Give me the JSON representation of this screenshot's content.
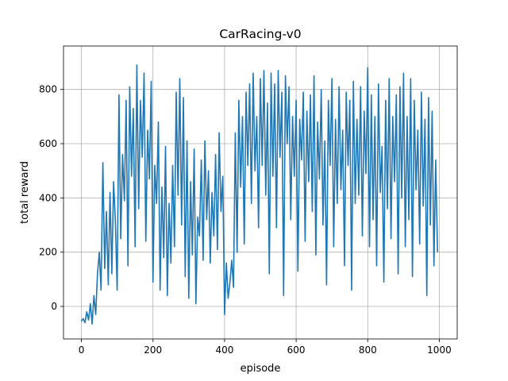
{
  "chart_data": {
    "type": "line",
    "title": "CarRacing-v0",
    "xlabel": "episode",
    "ylabel": "total reward",
    "xlim": [
      -50,
      1050
    ],
    "ylim": [
      -120,
      960
    ],
    "xticks": [
      0,
      200,
      400,
      600,
      800,
      1000
    ],
    "yticks": [
      0,
      200,
      400,
      600,
      800
    ],
    "grid": true,
    "series": [
      {
        "color": "#1f77b4",
        "x": [
          0,
          5,
          10,
          15,
          20,
          25,
          30,
          35,
          40,
          45,
          50,
          55,
          60,
          65,
          70,
          75,
          80,
          85,
          90,
          95,
          100,
          105,
          110,
          115,
          120,
          125,
          130,
          135,
          140,
          145,
          150,
          155,
          160,
          165,
          170,
          175,
          180,
          185,
          190,
          195,
          200,
          205,
          210,
          215,
          220,
          225,
          230,
          235,
          240,
          245,
          250,
          255,
          260,
          265,
          270,
          275,
          280,
          285,
          290,
          295,
          300,
          305,
          310,
          315,
          320,
          325,
          330,
          335,
          340,
          345,
          350,
          355,
          360,
          365,
          370,
          375,
          380,
          385,
          390,
          395,
          400,
          405,
          410,
          415,
          420,
          425,
          430,
          435,
          440,
          445,
          450,
          455,
          460,
          465,
          470,
          475,
          480,
          485,
          490,
          495,
          500,
          505,
          510,
          515,
          520,
          525,
          530,
          535,
          540,
          545,
          550,
          555,
          560,
          565,
          570,
          575,
          580,
          585,
          590,
          595,
          600,
          605,
          610,
          615,
          620,
          625,
          630,
          635,
          640,
          645,
          650,
          655,
          660,
          665,
          670,
          675,
          680,
          685,
          690,
          695,
          700,
          705,
          710,
          715,
          720,
          725,
          730,
          735,
          740,
          745,
          750,
          755,
          760,
          765,
          770,
          775,
          780,
          785,
          790,
          795,
          800,
          805,
          810,
          815,
          820,
          825,
          830,
          835,
          840,
          845,
          850,
          855,
          860,
          865,
          870,
          875,
          880,
          885,
          890,
          895,
          900,
          905,
          910,
          915,
          920,
          925,
          930,
          935,
          940,
          945,
          950,
          955,
          960,
          965,
          970,
          975,
          980,
          985,
          990,
          995
        ],
        "values": [
          -55,
          -45,
          -60,
          -20,
          -50,
          10,
          -65,
          40,
          -30,
          120,
          200,
          60,
          530,
          140,
          350,
          80,
          420,
          120,
          460,
          310,
          60,
          780,
          250,
          560,
          390,
          760,
          150,
          810,
          480,
          730,
          220,
          890,
          360,
          760,
          550,
          860,
          240,
          650,
          470,
          830,
          90,
          520,
          380,
          680,
          60,
          440,
          180,
          590,
          40,
          380,
          160,
          520,
          220,
          790,
          410,
          840,
          300,
          770,
          110,
          610,
          30,
          460,
          190,
          580,
          10,
          330,
          260,
          540,
          170,
          610,
          320,
          500,
          160,
          420,
          260,
          560,
          210,
          640,
          350,
          480,
          -30,
          160,
          30,
          90,
          170,
          70,
          640,
          200,
          760,
          440,
          700,
          230,
          790,
          520,
          820,
          380,
          860,
          500,
          700,
          290,
          840,
          520,
          870,
          410,
          750,
          120,
          860,
          480,
          820,
          290,
          870,
          550,
          790,
          40,
          850,
          600,
          810,
          320,
          700,
          480,
          760,
          130,
          690,
          540,
          790,
          240,
          720,
          460,
          780,
          350,
          850,
          190,
          680,
          470,
          800,
          300,
          610,
          80,
          760,
          520,
          840,
          220,
          690,
          380,
          810,
          430,
          650,
          150,
          790,
          520,
          760,
          60,
          830,
          380,
          690,
          410,
          810,
          260,
          720,
          490,
          880,
          220,
          780,
          320,
          700,
          150,
          820,
          420,
          590,
          90,
          760,
          360,
          840,
          250,
          700,
          460,
          780,
          120,
          810,
          400,
          860,
          220,
          700,
          320,
          840,
          110,
          760,
          430,
          650,
          230,
          790,
          370,
          690,
          40,
          770,
          300,
          720,
          150,
          540,
          200
        ]
      }
    ]
  }
}
